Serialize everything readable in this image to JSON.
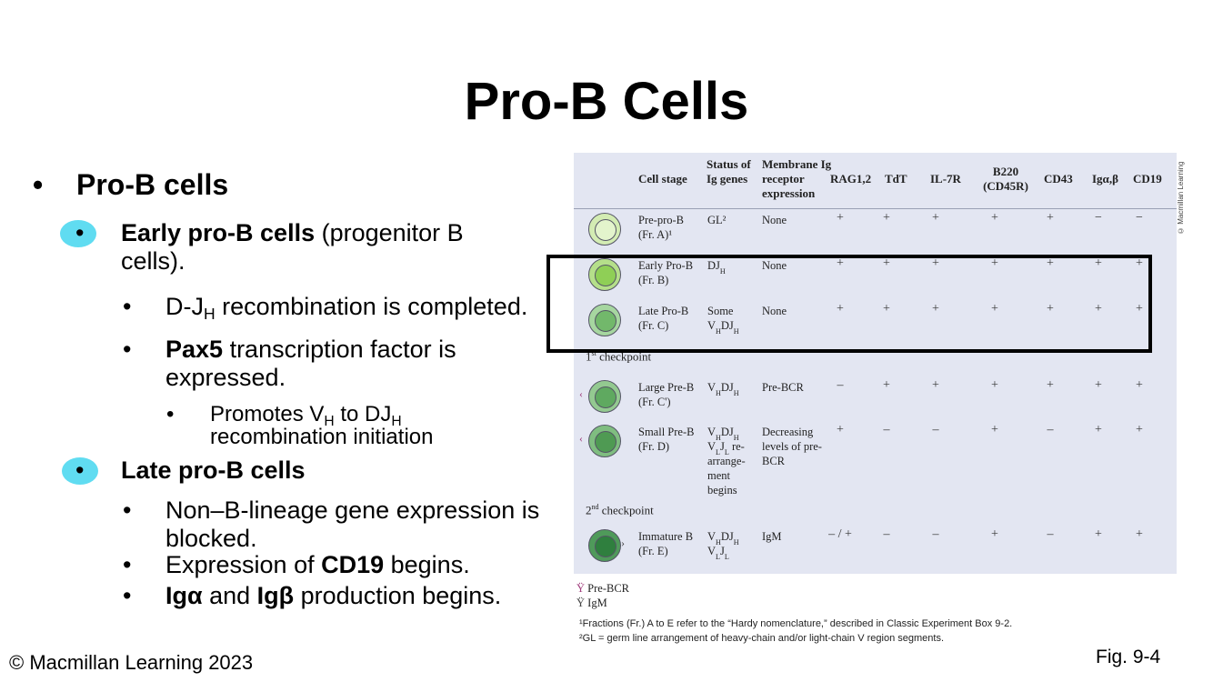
{
  "title": "Pro-B Cells",
  "bullets": {
    "b1": "Pro-B cells",
    "b2_bold": "Early pro-B cells",
    "b2_rest": " (progenitor B cells).",
    "b2a_1": "D-J",
    "b2a_sub": "H",
    "b2a_2": " recombination is completed.",
    "b2b_bold": "Pax5",
    "b2b_rest": " transcription factor is expressed.",
    "b2b1_1": "Promotes V",
    "b2b1_sub1": "H",
    "b2b1_2": " to DJ",
    "b2b1_sub2": "H",
    "b2b1_3": " recombination initiation",
    "b3": "Late pro-B cells",
    "b3a": "Non–B-lineage gene expression is blocked.",
    "b3b_1": "Expression of ",
    "b3b_bold": "CD19",
    "b3b_2": " begins.",
    "b3c_bold1": "Igα",
    "b3c_mid": " and ",
    "b3c_bold2": "Igβ",
    "b3c_end": " production begins."
  },
  "bullet_char": "•",
  "footer_left": "© Macmillan Learning 2023",
  "footer_right": "Fig. 9-4",
  "figure": {
    "credit": "© Macmillan Learning",
    "headers": {
      "stage": "Cell stage",
      "status": "Status of Ig genes",
      "membrane": "Membrane Ig receptor expression",
      "rag": "RAG1,2",
      "tdt": "TdT",
      "il7r": "IL-7R",
      "b220": "B220 (CD45R)",
      "cd43": "CD43",
      "iga": "Igα,β",
      "cd19": "CD19"
    },
    "rows": [
      {
        "stage": "Pre-pro-B",
        "frac": "(Fr. A)¹",
        "status": "GL²",
        "membrane": "None",
        "marks": [
          "+",
          "+",
          "+",
          "+",
          "+",
          "−",
          "−"
        ],
        "cell_fill": "#d3ecb3",
        "nuc_fill": "#e3f4cc"
      },
      {
        "stage": "Early Pro-B",
        "frac": "(Fr. B)",
        "status": "DJ<sub>H</sub>",
        "membrane": "None",
        "marks": [
          "+",
          "+",
          "+",
          "+",
          "+",
          "+",
          "+"
        ],
        "cell_fill": "#b5df8a",
        "nuc_fill": "#8fcf56"
      },
      {
        "stage": "Late Pro-B",
        "frac": "(Fr. C)",
        "status": "Some V<sub>H</sub>DJ<sub>H</sub>",
        "membrane": "None",
        "marks": [
          "+",
          "+",
          "+",
          "+",
          "+",
          "+",
          "+"
        ],
        "cell_fill": "#a6d6a0",
        "nuc_fill": "#72b86b"
      },
      {
        "stage": "Large Pre-B",
        "frac": "(Fr. C')",
        "status": "V<sub>H</sub>DJ<sub>H</sub>",
        "membrane": "Pre-BCR",
        "marks": [
          "–",
          "+",
          "+",
          "+",
          "+",
          "+",
          "+"
        ],
        "cell_fill": "#93c990",
        "nuc_fill": "#5fa960"
      },
      {
        "stage": "Small Pre-B",
        "frac": "(Fr. D)",
        "status": "V<sub>H</sub>DJ<sub>H</sub> V<sub>L</sub>J<sub>L</sub> re-arrange-ment begins",
        "membrane": "Decreasing levels of pre-BCR",
        "marks": [
          "+",
          "–",
          "–",
          "+",
          "–",
          "+",
          "+"
        ],
        "cell_fill": "#7fbd80",
        "nuc_fill": "#4f9a53"
      },
      {
        "stage": "Immature B",
        "frac": "(Fr. E)",
        "status": "V<sub>H</sub>DJ<sub>H</sub> V<sub>L</sub>J<sub>L</sub>",
        "membrane": "IgM",
        "marks": [
          "– / +",
          "–",
          "–",
          "+",
          "–",
          "+",
          "+"
        ],
        "cell_fill": "#4f9a5a",
        "nuc_fill": "#2f7f3e"
      }
    ],
    "checkpoint1": "1st checkpoint",
    "checkpoint2": "2nd checkpoint",
    "legend_prebcr": "Pre-BCR",
    "legend_igm": "IgM",
    "footnote1": "¹Fractions (Fr.) A to E refer to the “Hardy nomenclature,” described in Classic Experiment Box 9-2.",
    "footnote2": "²GL = germ line arrangement of heavy-chain and/or light-chain V region segments."
  }
}
